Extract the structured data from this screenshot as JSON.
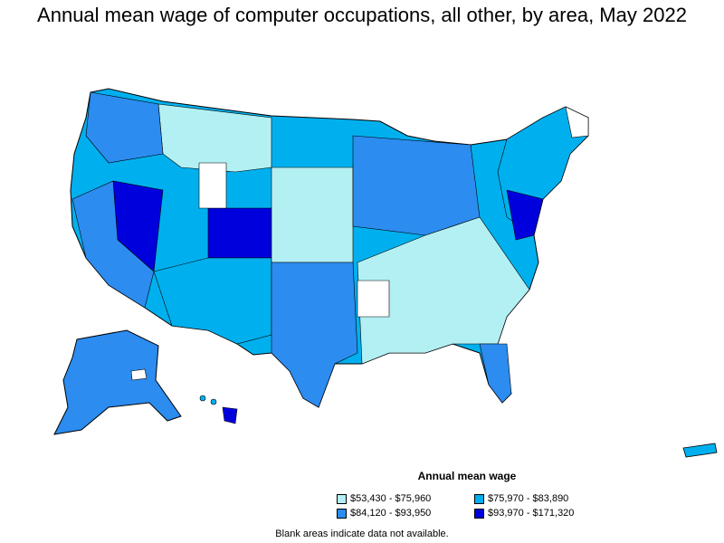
{
  "title": "Annual mean wage of computer occupations, all other, by area, May 2022",
  "legend": {
    "title": "Annual mean wage",
    "items": [
      {
        "label": "$53,430 - $75,960",
        "color": "#b2f0f4"
      },
      {
        "label": "$75,970 - $83,890",
        "color": "#00b0ee"
      },
      {
        "label": "$84,120 - $93,950",
        "color": "#2c8cf0"
      },
      {
        "label": "$93,970 - $171,320",
        "color": "#0000dd"
      }
    ]
  },
  "note": "Blank areas indicate data not available.",
  "colors": {
    "outline": "#000000",
    "no_data": "#ffffff"
  }
}
